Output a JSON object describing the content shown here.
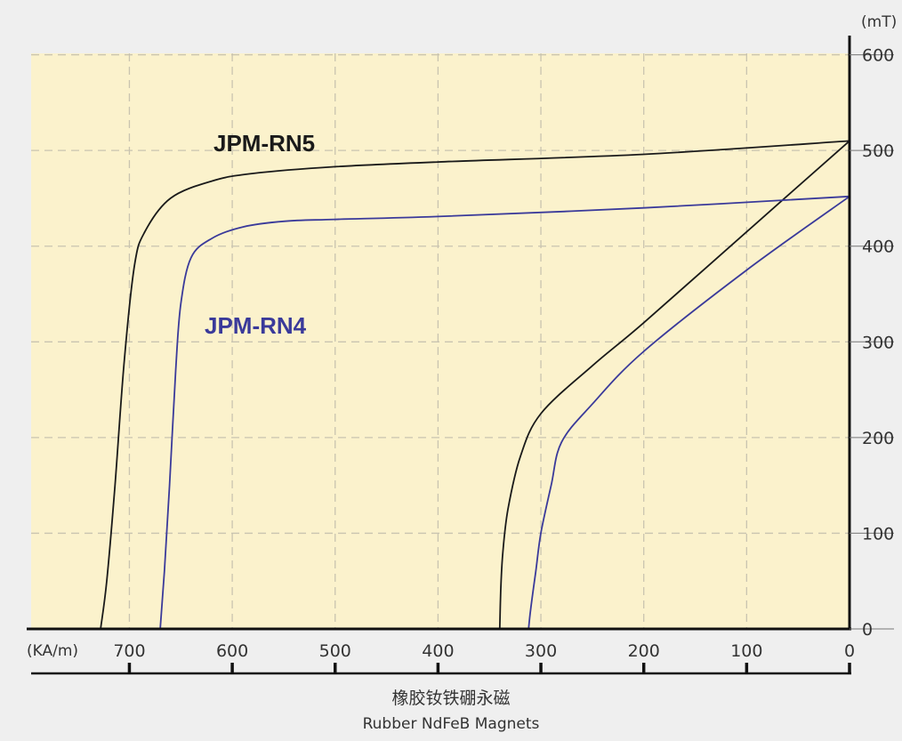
{
  "chart_data": {
    "type": "line",
    "title": "",
    "subtitle_cn": "橡胶钕铁硼永磁",
    "subtitle_en": "Rubber NdFeB Magnets",
    "xlabel": "",
    "x_unit": "(KA/m)",
    "y_unit": "(mT)",
    "x_reversed": true,
    "xlim": [
      790,
      0
    ],
    "ylim": [
      0,
      600
    ],
    "x_ticks": [
      700,
      600,
      500,
      400,
      300,
      200,
      100,
      0
    ],
    "y_ticks": [
      0,
      100,
      200,
      300,
      400,
      500,
      600
    ],
    "grid": true,
    "background_color": "#fbf2cc",
    "series": [
      {
        "name": "JPM-RN5",
        "color": "#1a1a1a",
        "label_color": "#1a1a1a",
        "bh_curve": [
          [
            0,
            510
          ],
          [
            200,
            496
          ],
          [
            400,
            488
          ],
          [
            500,
            483
          ],
          [
            580,
            476
          ],
          [
            620,
            468
          ],
          [
            660,
            450
          ],
          [
            685,
            415
          ],
          [
            695,
            380
          ],
          [
            705,
            280
          ],
          [
            714,
            150
          ],
          [
            722,
            50
          ],
          [
            728,
            0
          ]
        ],
        "bb_curve": [
          [
            0,
            510
          ],
          [
            100,
            415
          ],
          [
            200,
            320
          ],
          [
            250,
            275
          ],
          [
            300,
            225
          ],
          [
            320,
            180
          ],
          [
            332,
            125
          ],
          [
            337,
            80
          ],
          [
            339,
            40
          ],
          [
            340,
            0
          ]
        ]
      },
      {
        "name": "JPM-RN4",
        "color": "#3a3a9a",
        "label_color": "#3a3a9a",
        "bh_curve": [
          [
            0,
            452
          ],
          [
            200,
            440
          ],
          [
            400,
            431
          ],
          [
            500,
            428
          ],
          [
            550,
            426
          ],
          [
            590,
            420
          ],
          [
            620,
            408
          ],
          [
            640,
            388
          ],
          [
            650,
            340
          ],
          [
            655,
            270
          ],
          [
            661,
            150
          ],
          [
            666,
            60
          ],
          [
            670,
            0
          ]
        ],
        "bb_curve": [
          [
            0,
            452
          ],
          [
            100,
            375
          ],
          [
            200,
            290
          ],
          [
            250,
            235
          ],
          [
            280,
            195
          ],
          [
            290,
            150
          ],
          [
            300,
            100
          ],
          [
            305,
            60
          ],
          [
            310,
            20
          ],
          [
            312,
            0
          ]
        ]
      }
    ]
  }
}
